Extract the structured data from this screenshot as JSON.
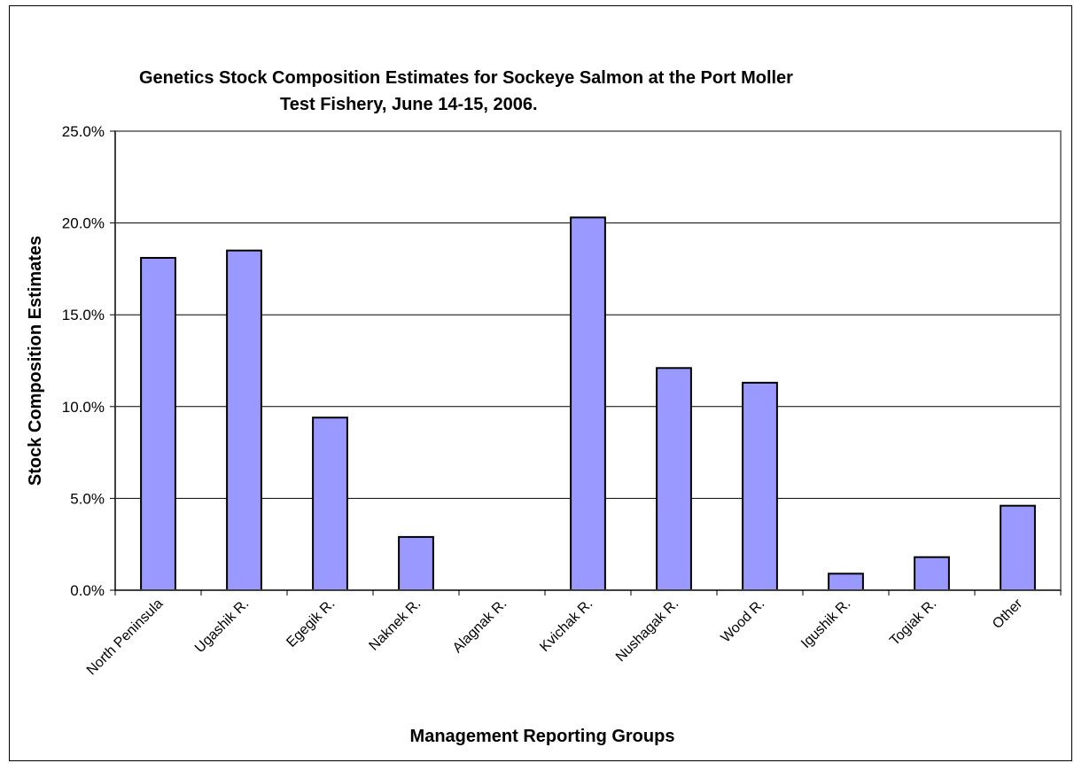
{
  "chart_data": {
    "type": "bar",
    "title_lines": [
      "Genetics Stock Composition Estimates for Sockeye Salmon at the Port Moller",
      "Test Fishery, June 14-15, 2006."
    ],
    "xlabel": "Management Reporting Groups",
    "ylabel": "Stock Composition Estimates",
    "categories": [
      "North Peninsula",
      "Ugashik R.",
      "Egegik R.",
      "Naknek R.",
      "Alagnak R.",
      "Kvichak R.",
      "Nushagak R.",
      "Wood R.",
      "Igushik R.",
      "Togiak R.",
      "Other"
    ],
    "values": [
      18.1,
      18.5,
      9.4,
      2.9,
      0.0,
      20.3,
      12.1,
      11.3,
      0.9,
      1.8,
      4.6
    ],
    "ylim": [
      0,
      25
    ],
    "yticks": [
      0,
      5,
      10,
      15,
      20,
      25
    ],
    "ytick_labels": [
      "0.0%",
      "5.0%",
      "10.0%",
      "15.0%",
      "20.0%",
      "25.0%"
    ],
    "grid": true,
    "colors": {
      "bar_fill": "#9999FF",
      "bar_stroke": "#000000",
      "grid": "#000000",
      "plot_border": "#808080"
    }
  }
}
